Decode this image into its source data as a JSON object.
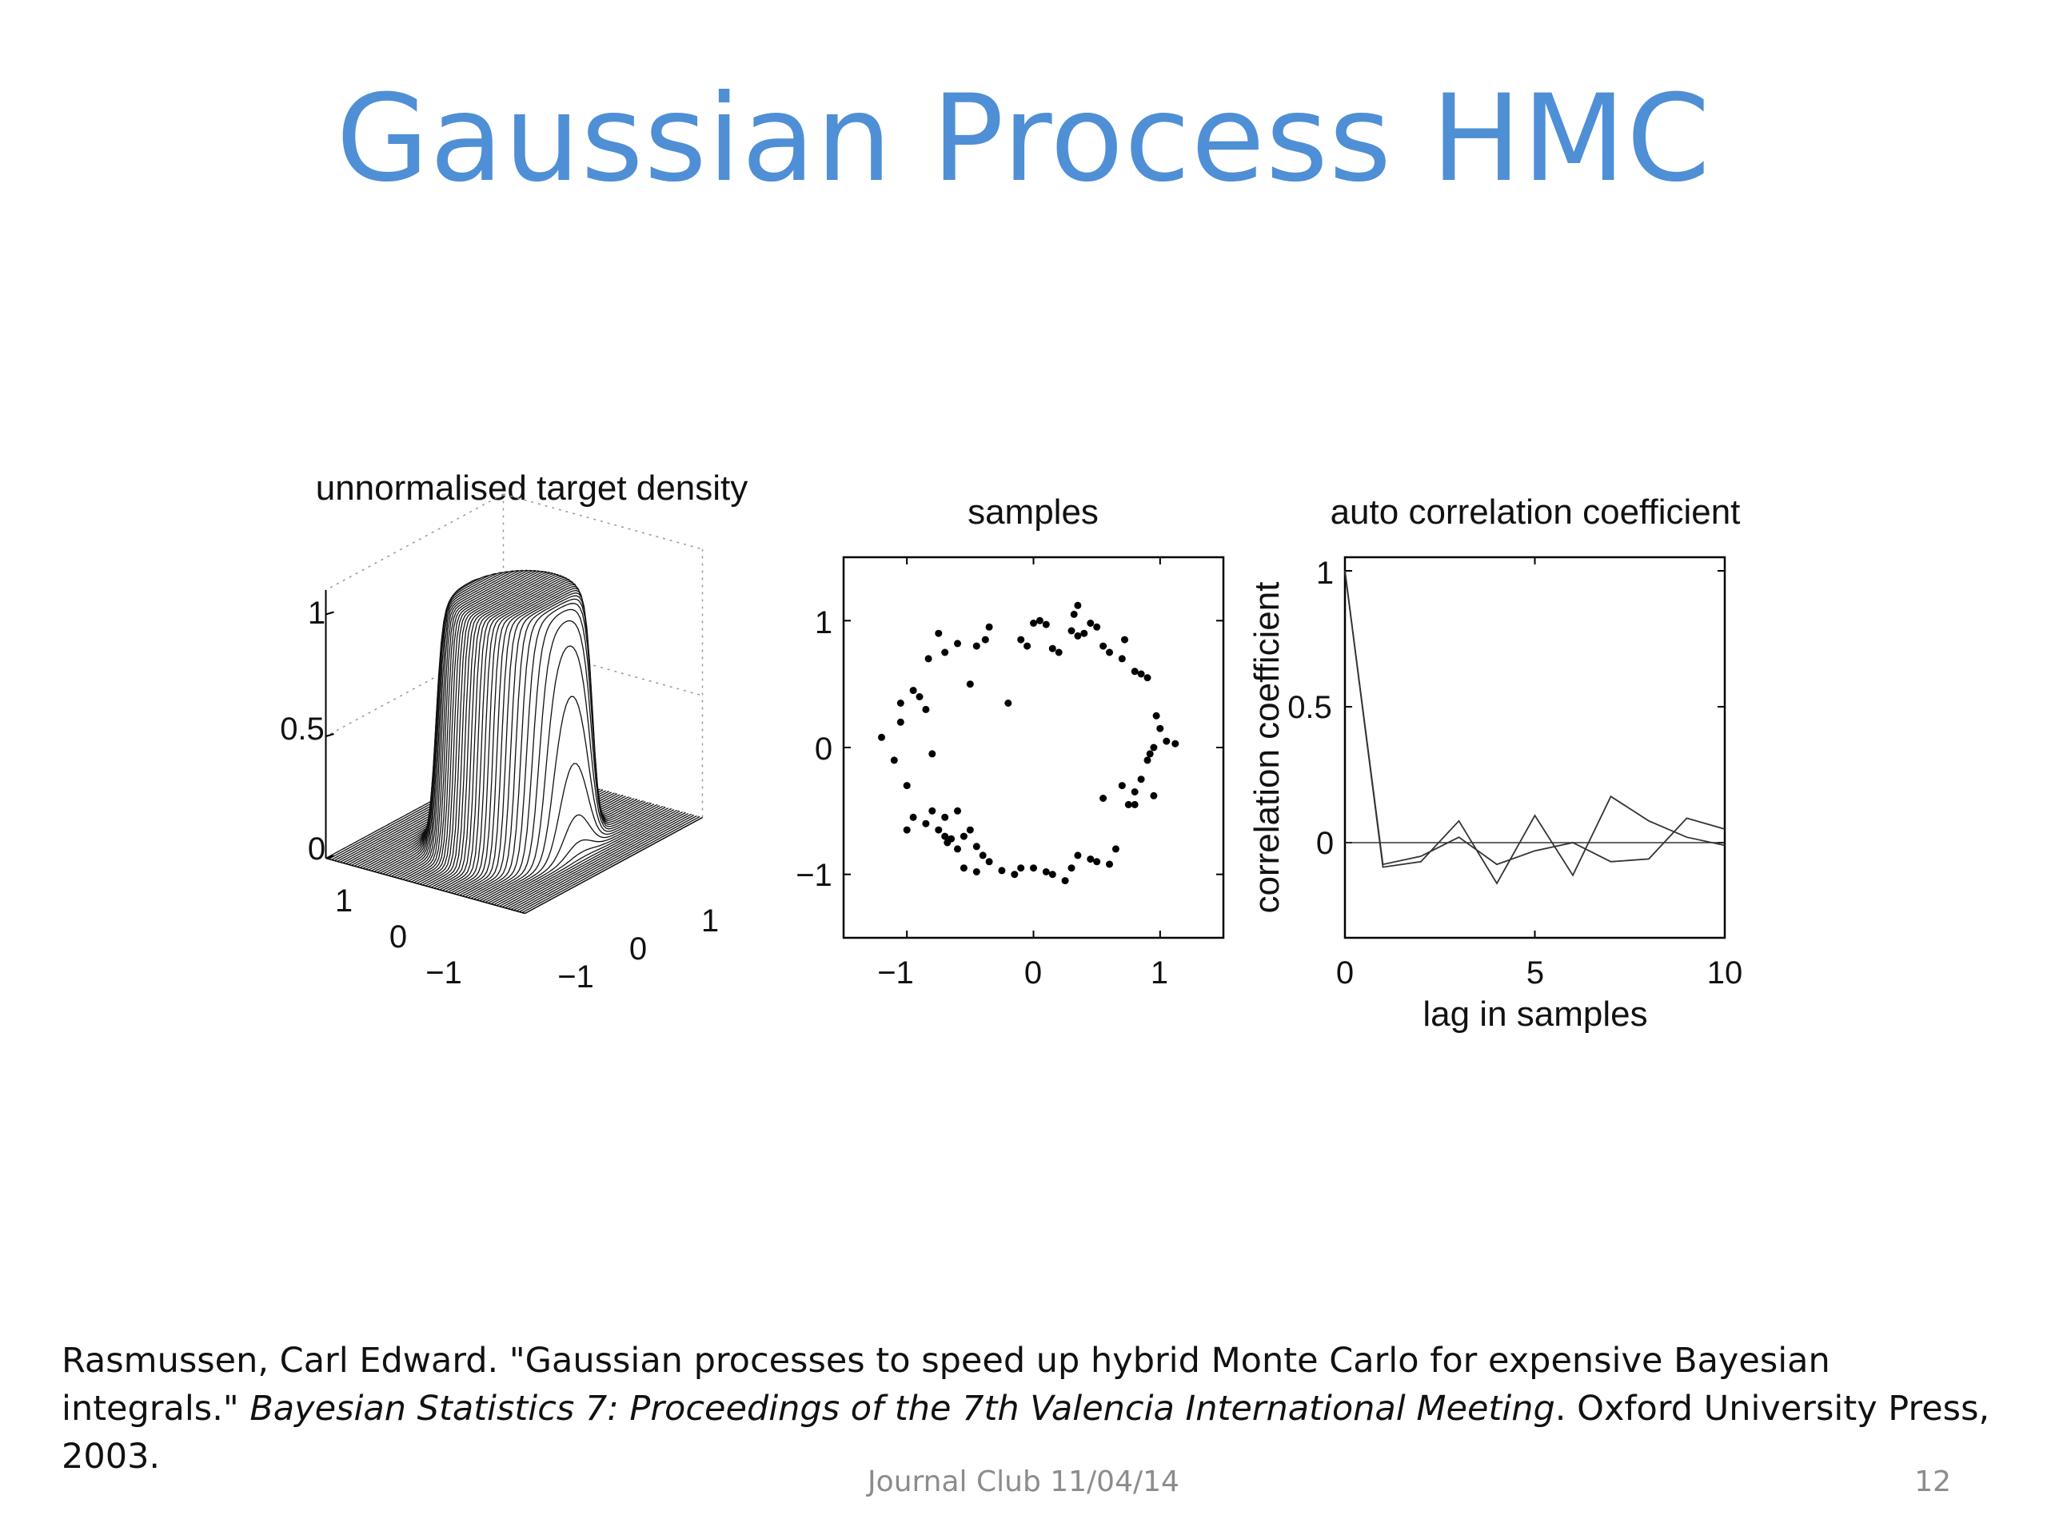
{
  "slide": {
    "title": "Gaussian Process HMC",
    "citation": {
      "part1": "Rasmussen, Carl Edward. \"Gaussian processes to speed up hybrid Monte Carlo for expensive Bayesian integrals.\" ",
      "italic": "Bayesian Statistics 7: Proceedings of the 7th Valencia International Meeting",
      "part2": ". Oxford University Press, 2003."
    },
    "footer": "Journal Club 11/04/14",
    "page_number": "12"
  },
  "chart_data": [
    {
      "type": "surface",
      "title": "unnormalised target density",
      "z_ticks": [
        "0",
        "0.5",
        "1"
      ],
      "y_ticks": [
        "1",
        "0",
        "−1"
      ],
      "x_ticks": [
        "−1",
        "0",
        "1"
      ],
      "xlim": [
        -1.5,
        1.5
      ],
      "ylim": [
        -1.5,
        1.5
      ],
      "zlim": [
        0,
        1
      ],
      "surface": "ring-shaped density, approximately 1 for radius below ~0.9 and falling to 0 outside",
      "grid": true
    },
    {
      "type": "scatter",
      "title": "samples",
      "xlim": [
        -1.5,
        1.5
      ],
      "ylim": [
        -1.5,
        1.5
      ],
      "x_ticks": [
        "−1",
        "0",
        "1"
      ],
      "y_ticks": [
        "1",
        "0",
        "−1"
      ],
      "points": [
        [
          -1.2,
          0.08
        ],
        [
          -1.05,
          0.35
        ],
        [
          -1.05,
          0.2
        ],
        [
          -1.1,
          -0.1
        ],
        [
          -1.0,
          -0.3
        ],
        [
          -0.95,
          0.45
        ],
        [
          -0.9,
          0.4
        ],
        [
          -0.85,
          0.3
        ],
        [
          -0.8,
          -0.05
        ],
        [
          -0.95,
          -0.55
        ],
        [
          -0.85,
          -0.6
        ],
        [
          -0.8,
          -0.5
        ],
        [
          -0.75,
          -0.65
        ],
        [
          -0.7,
          -0.7
        ],
        [
          -0.68,
          -0.75
        ],
        [
          -0.65,
          -0.72
        ],
        [
          -0.6,
          -0.8
        ],
        [
          -0.55,
          -0.7
        ],
        [
          -0.5,
          -0.65
        ],
        [
          -0.45,
          -0.78
        ],
        [
          -0.4,
          -0.85
        ],
        [
          -0.35,
          -0.9
        ],
        [
          -0.6,
          -0.5
        ],
        [
          -0.7,
          -0.55
        ],
        [
          -0.55,
          -0.95
        ],
        [
          -0.45,
          -0.98
        ],
        [
          -0.25,
          -0.97
        ],
        [
          -0.15,
          -1.0
        ],
        [
          -0.1,
          -0.95
        ],
        [
          0.0,
          -0.95
        ],
        [
          0.1,
          -0.98
        ],
        [
          0.15,
          -1.0
        ],
        [
          0.25,
          -1.05
        ],
        [
          0.3,
          -0.95
        ],
        [
          0.35,
          -0.85
        ],
        [
          0.45,
          -0.88
        ],
        [
          0.5,
          -0.9
        ],
        [
          0.6,
          -0.92
        ],
        [
          0.65,
          -0.8
        ],
        [
          0.55,
          -0.4
        ],
        [
          0.7,
          -0.3
        ],
        [
          0.75,
          -0.45
        ],
        [
          0.8,
          -0.35
        ],
        [
          0.8,
          -0.45
        ],
        [
          0.85,
          -0.25
        ],
        [
          0.9,
          -0.1
        ],
        [
          0.95,
          -0.38
        ],
        [
          0.92,
          -0.05
        ],
        [
          0.95,
          0.0
        ],
        [
          1.0,
          0.15
        ],
        [
          1.05,
          0.05
        ],
        [
          0.97,
          0.25
        ],
        [
          1.12,
          0.03
        ],
        [
          0.9,
          0.55
        ],
        [
          0.85,
          0.58
        ],
        [
          0.8,
          0.6
        ],
        [
          0.7,
          0.7
        ],
        [
          0.72,
          0.85
        ],
        [
          0.6,
          0.75
        ],
        [
          0.55,
          0.8
        ],
        [
          0.5,
          0.95
        ],
        [
          0.4,
          0.9
        ],
        [
          0.35,
          0.88
        ],
        [
          0.3,
          0.92
        ],
        [
          0.32,
          1.05
        ],
        [
          0.35,
          1.12
        ],
        [
          0.45,
          0.98
        ],
        [
          0.2,
          0.75
        ],
        [
          0.15,
          0.78
        ],
        [
          0.1,
          0.97
        ],
        [
          0.05,
          1.0
        ],
        [
          0.0,
          0.98
        ],
        [
          -0.05,
          0.8
        ],
        [
          -0.1,
          0.85
        ],
        [
          -0.35,
          0.95
        ],
        [
          -0.38,
          0.85
        ],
        [
          -0.45,
          0.8
        ],
        [
          -0.6,
          0.82
        ],
        [
          -0.7,
          0.75
        ],
        [
          -0.75,
          0.9
        ],
        [
          -0.83,
          0.7
        ],
        [
          -0.5,
          0.5
        ],
        [
          -0.2,
          0.35
        ],
        [
          -1.0,
          -0.65
        ]
      ]
    },
    {
      "type": "line",
      "title": "auto correlation coefficient",
      "xlabel": "lag in samples",
      "ylabel": "correlation coefficient",
      "xlim": [
        0,
        10
      ],
      "ylim": [
        -0.35,
        1.05
      ],
      "x_ticks": [
        "0",
        "5",
        "10"
      ],
      "y_ticks": [
        "1",
        "0.5",
        "0"
      ],
      "x": [
        0,
        1,
        2,
        3,
        4,
        5,
        6,
        7,
        8,
        9,
        10
      ],
      "series": [
        {
          "values": [
            1.0,
            -0.09,
            -0.07,
            0.08,
            -0.15,
            0.1,
            -0.12,
            0.17,
            0.08,
            0.02,
            -0.01
          ]
        },
        {
          "values": [
            1.0,
            -0.08,
            -0.05,
            0.02,
            -0.08,
            -0.03,
            0.0,
            -0.07,
            -0.06,
            0.09,
            0.05
          ]
        }
      ],
      "reference_line": 0
    }
  ]
}
